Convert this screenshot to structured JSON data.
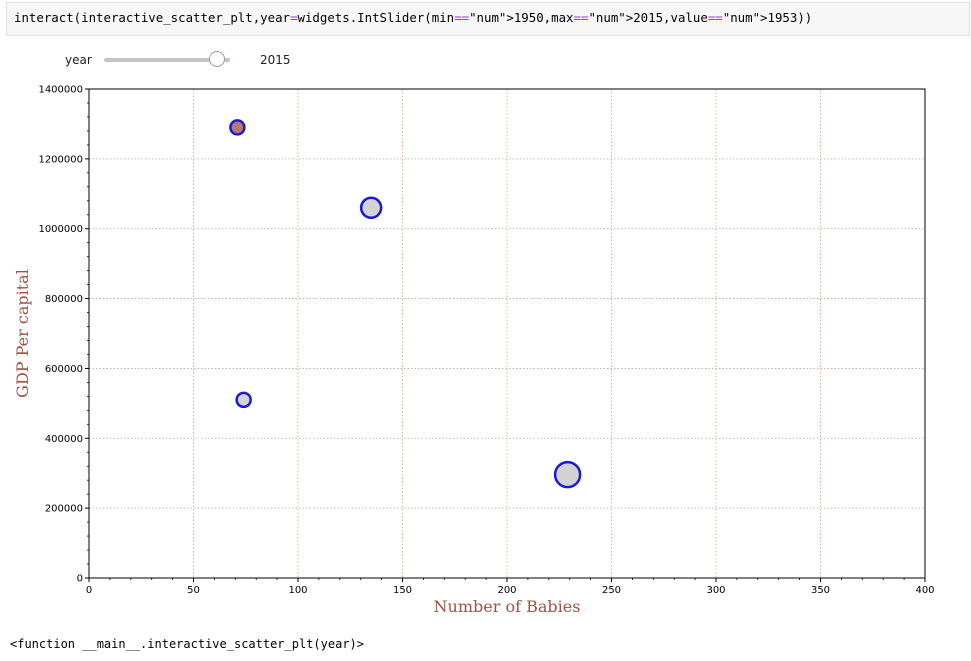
{
  "code_cell": {
    "source": "interact(interactive_scatter_plt,year=widgets.IntSlider(min=1950,max=2015,value=1953))"
  },
  "slider": {
    "label": "year",
    "value": 2015,
    "value_text": "2015",
    "min": 1950,
    "max": 2015,
    "fraction": 0.9
  },
  "chart_data": {
    "type": "scatter",
    "title": "",
    "xlabel": "Number of Babies",
    "ylabel": "GDP Per capital",
    "xlim": [
      0,
      400
    ],
    "ylim": [
      0,
      1400000
    ],
    "xticks": [
      0,
      50,
      100,
      150,
      200,
      250,
      300,
      350,
      400
    ],
    "yticks": [
      0,
      200000,
      400000,
      600000,
      800000,
      1000000,
      1200000,
      1400000
    ],
    "xtick_labels": [
      "0",
      "50",
      "100",
      "150",
      "200",
      "250",
      "300",
      "350",
      "400"
    ],
    "ytick_labels": [
      "0",
      "200000",
      "400000",
      "600000",
      "800000",
      "1000000",
      "1200000",
      "1400000"
    ],
    "grid": true,
    "label_color": "#a0523c",
    "grid_color": "#d4a08a",
    "marker_edge_color": "#1a1ad0",
    "marker_fill_color": "#d3d3d3",
    "points": [
      {
        "x": 71,
        "y": 1290000,
        "size": 1,
        "fill": "#b57a6a"
      },
      {
        "x": 135,
        "y": 1060000,
        "size": 2,
        "fill": "#d3d3d3"
      },
      {
        "x": 74,
        "y": 510000,
        "size": 1,
        "fill": "#d3d3d3"
      },
      {
        "x": 229,
        "y": 296000,
        "size": 3,
        "fill": "#d3d3d3"
      }
    ]
  },
  "output": {
    "text": "<function __main__.interactive_scatter_plt(year)>"
  }
}
